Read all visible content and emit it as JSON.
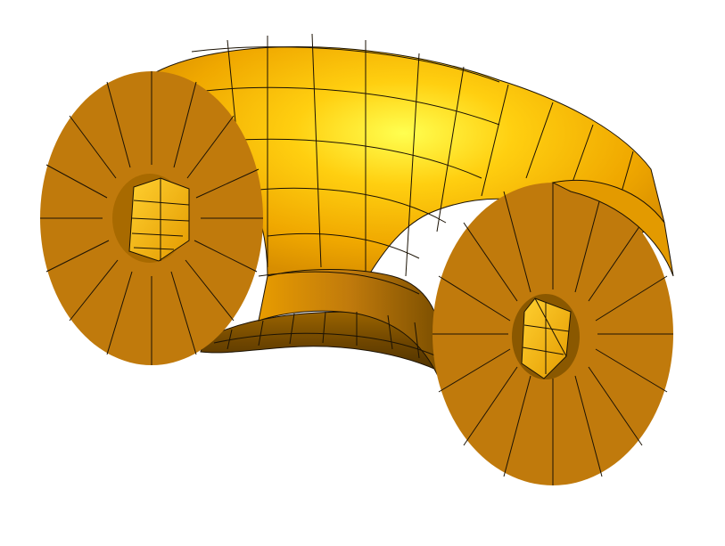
{
  "scene": {
    "subject": "curved-tube-mesh",
    "colors": {
      "background": "#ffffff",
      "edge": "#1b1204",
      "face_base": "#c07a0c",
      "face_light": "#f0a800",
      "face_highlight": "#ffff50",
      "face_mid": "#e39a00",
      "face_dark": "#7a4e00",
      "face_shadow": "#4a3000",
      "hole_wall": "#ffb800"
    }
  }
}
